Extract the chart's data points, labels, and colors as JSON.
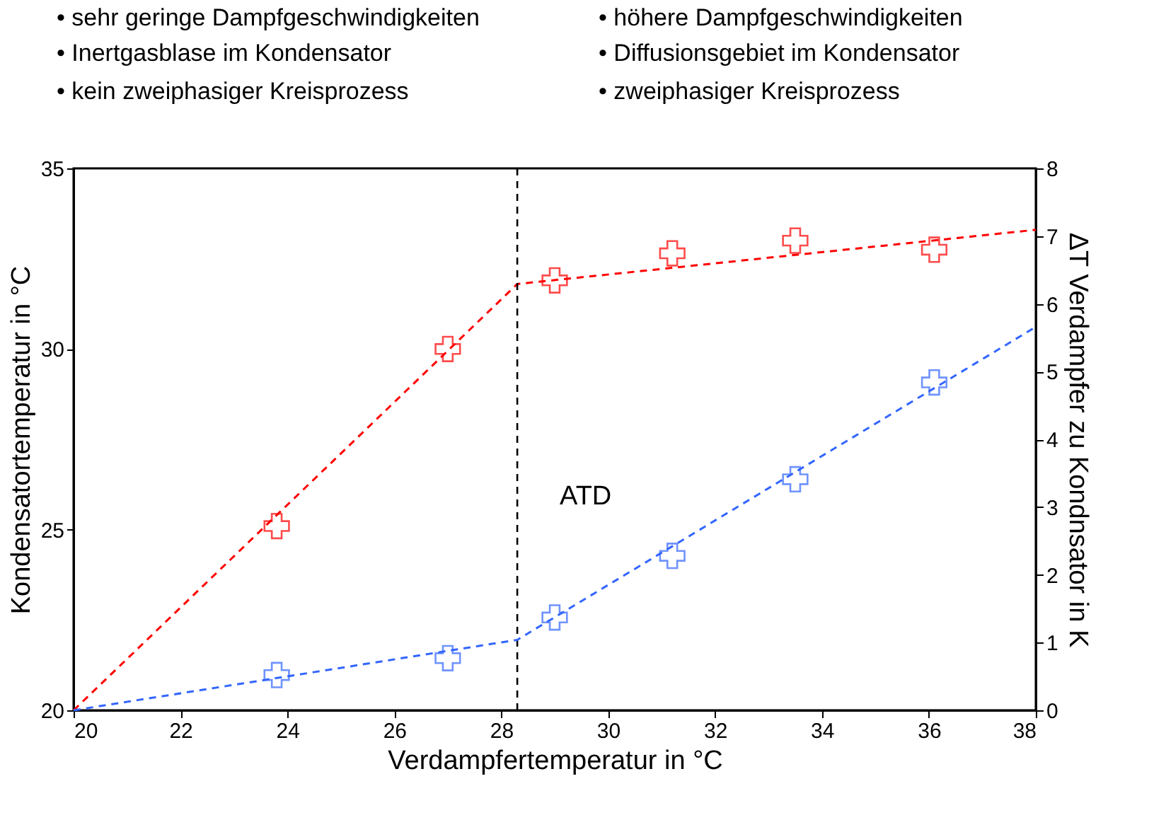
{
  "chart_data": {
    "type": "scatter",
    "xlabel": "Verdampfertemperatur in °C",
    "ylabel": "Kondensatortemperatur in °C",
    "y2label": "ΔT Verdampfer zu Kondnsator in K",
    "xlim": [
      20,
      38
    ],
    "xticks": [
      20,
      22,
      24,
      26,
      28,
      30,
      32,
      34,
      36,
      38
    ],
    "ylim": [
      20,
      35
    ],
    "yticks": [
      20,
      25,
      30,
      35
    ],
    "y2lim": [
      0,
      8
    ],
    "y2ticks": [
      0,
      1,
      2,
      3,
      4,
      5,
      6,
      7,
      8
    ],
    "series": [
      {
        "type": "scatter",
        "color": "#ff0000",
        "marker": "cross",
        "x": [
          23.8,
          27.0,
          29.0,
          31.2,
          33.5,
          36.1
        ],
        "values": [
          25.1,
          30.0,
          31.9,
          32.65,
          33.0,
          32.75
        ]
      },
      {
        "type": "line",
        "color": "#ff0000",
        "line_style": "dashed",
        "x": [
          20,
          28.3,
          38
        ],
        "values": [
          20,
          31.8,
          33.3
        ]
      },
      {
        "type": "scatter",
        "axis": "y2",
        "color": "#3366ff",
        "marker": "cross",
        "x": [
          23.8,
          27.0,
          29.0,
          31.2,
          33.5,
          36.1
        ],
        "values": [
          0.52,
          0.77,
          1.37,
          2.28,
          3.41,
          4.84
        ]
      },
      {
        "type": "line",
        "axis": "y2",
        "color": "#3366ff",
        "line_style": "dashed",
        "x": [
          20,
          28.3,
          38
        ],
        "values": [
          0,
          1.04,
          5.66
        ]
      }
    ],
    "ref_lines": [
      {
        "axis": "x",
        "value": 28.3,
        "color": "#000000",
        "line_style": "dashed"
      }
    ],
    "annotations": [
      "• sehr geringe Dampfgeschwindigkeiten",
      "• Inertgasblase im Kondensator",
      "• kein zweiphasiger Kreisprozess",
      "• höhere Dampfgeschwindigkeiten",
      "• Diffusionsgebiet im Kondensator",
      "• zweiphasiger Kreisprozess",
      "ATD"
    ]
  }
}
